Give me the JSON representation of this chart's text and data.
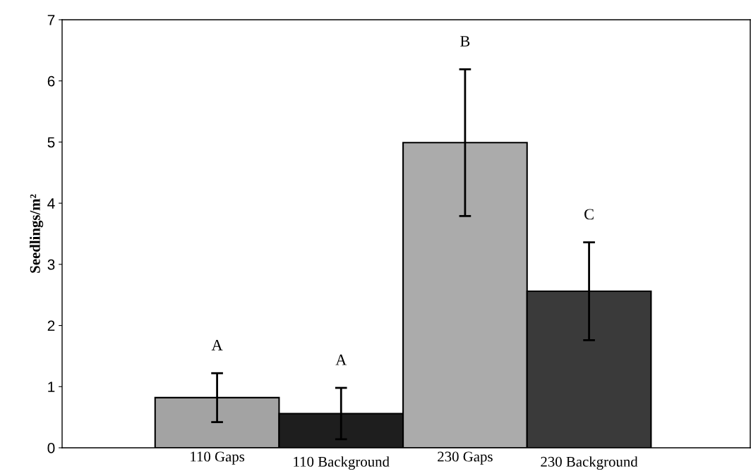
{
  "chart_data": {
    "type": "bar",
    "ylabel": "Seedlings/m²",
    "categories": [
      "110 Gaps",
      "110 Background",
      "230 Gaps",
      "230 Background"
    ],
    "values": [
      0.82,
      0.56,
      4.99,
      2.56
    ],
    "errors": [
      0.4,
      0.42,
      1.2,
      0.8
    ],
    "colors": [
      "#a3a3a3",
      "#1e1e1e",
      "#ababab",
      "#3a3a3a"
    ],
    "ylim": [
      0,
      7
    ],
    "yticks": [
      0,
      1,
      2,
      3,
      4,
      5,
      6,
      7
    ],
    "grid": false,
    "legend": false,
    "annotations": [
      "A",
      "A",
      "B",
      "C"
    ]
  }
}
